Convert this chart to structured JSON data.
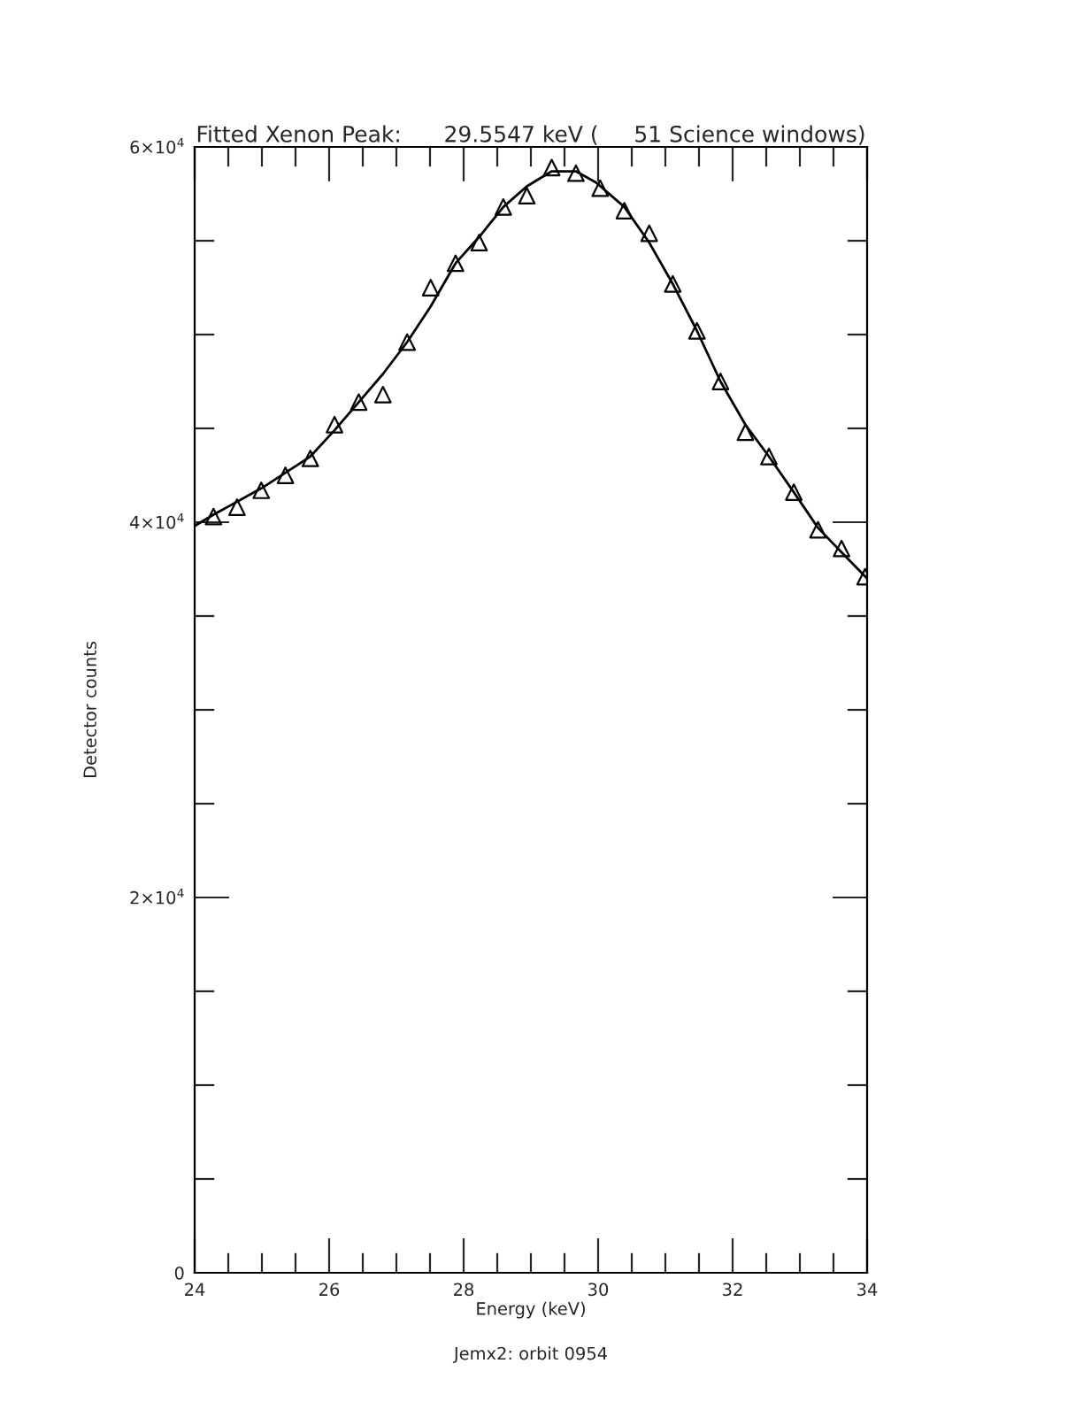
{
  "chart_data": {
    "type": "scatter",
    "title": "Fitted Xenon Peak:      29.5547 keV (     51 Science windows)",
    "xlabel": "Energy (keV)",
    "ylabel": "Detector counts",
    "annotations": [
      "Jemx2: orbit 0954"
    ],
    "xlim": [
      24,
      34
    ],
    "ylim": [
      0,
      60000
    ],
    "xticks": [
      24,
      {
        "value": 24.5,
        "label": null
      },
      {
        "value": 25,
        "label": null
      },
      {
        "value": 25.5,
        "label": null
      },
      26,
      {
        "value": 26.5,
        "label": null
      },
      {
        "value": 27,
        "label": null
      },
      {
        "value": 27.5,
        "label": null
      },
      28,
      {
        "value": 28.5,
        "label": null
      },
      {
        "value": 29,
        "label": null
      },
      {
        "value": 29.5,
        "label": null
      },
      30,
      {
        "value": 30.5,
        "label": null
      },
      {
        "value": 31,
        "label": null
      },
      {
        "value": 31.5,
        "label": null
      },
      32,
      {
        "value": 32.5,
        "label": null
      },
      {
        "value": 33,
        "label": null
      },
      {
        "value": 33.5,
        "label": null
      },
      34
    ],
    "yticks": [
      0,
      {
        "value": 5000,
        "label": null
      },
      {
        "value": 10000,
        "label": null
      },
      {
        "value": 15000,
        "label": null
      },
      {
        "value": 20000,
        "label": "2×10$^{4}$"
      },
      {
        "value": 25000,
        "label": null
      },
      {
        "value": 30000,
        "label": null
      },
      {
        "value": 35000,
        "label": null
      },
      {
        "value": 40000,
        "label": "4×10$^{4}$"
      },
      {
        "value": 45000,
        "label": null
      },
      {
        "value": 50000,
        "label": null
      },
      {
        "value": 55000,
        "label": null
      },
      {
        "value": 60000,
        "label": "6×10$^{4}$"
      }
    ],
    "grid": false,
    "series": [
      {
        "marker": "triangle",
        "color": "#000000",
        "x": [
          24.28,
          24.63,
          24.99,
          25.35,
          25.72,
          26.08,
          26.44,
          26.8,
          27.16,
          27.51,
          27.88,
          28.23,
          28.59,
          28.94,
          29.31,
          29.67,
          30.03,
          30.39,
          30.76,
          31.11,
          31.47,
          31.82,
          32.19,
          32.54,
          32.91,
          33.27,
          33.62,
          33.97
        ],
        "values": [
          40300,
          40800,
          41700,
          42500,
          43400,
          45200,
          46400,
          46800,
          49600,
          52500,
          53800,
          54900,
          56800,
          57400,
          58900,
          58600,
          57800,
          56600,
          55400,
          52700,
          50200,
          47500,
          44800,
          43500,
          41600,
          39600,
          38600,
          37100
        ]
      },
      {
        "type": "line",
        "marker": "none",
        "line_style": "solid",
        "color": "#000000",
        "x": [
          24.0,
          24.28,
          24.99,
          25.72,
          26.08,
          26.44,
          26.8,
          27.16,
          27.51,
          27.88,
          28.23,
          28.59,
          28.94,
          29.31,
          29.67,
          29.97,
          30.39,
          30.76,
          31.11,
          31.47,
          31.82,
          32.19,
          32.54,
          32.91,
          33.27,
          33.62,
          34.0
        ],
        "values": [
          39800,
          40400,
          41800,
          43500,
          44900,
          46400,
          47900,
          49600,
          51500,
          53800,
          55200,
          56800,
          57900,
          58700,
          58700,
          58100,
          56800,
          54900,
          52700,
          50200,
          47500,
          45200,
          43500,
          41600,
          39700,
          38400,
          37000
        ]
      }
    ]
  }
}
